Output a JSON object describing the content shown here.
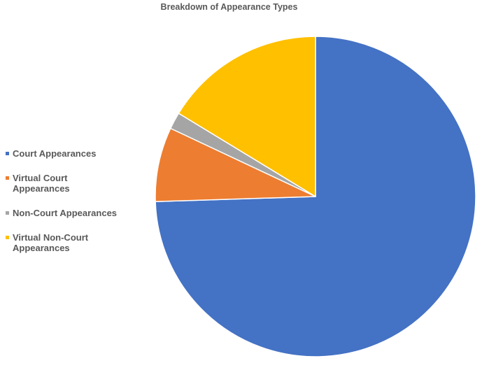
{
  "chart_data": {
    "type": "pie",
    "title": "Breakdown of Appearance Types",
    "categories": [
      "Court Appearances",
      "Virtual Court Appearances",
      "Non-Court Appearances",
      "Virtual Non-Court Appearances"
    ],
    "values": [
      74.5,
      7.5,
      1.7,
      16.3
    ],
    "colors": [
      "#4472C4",
      "#ED7D31",
      "#A5A5A5",
      "#FFC000"
    ],
    "legend_position": "left",
    "start_angle": "top",
    "direction": "clockwise"
  }
}
